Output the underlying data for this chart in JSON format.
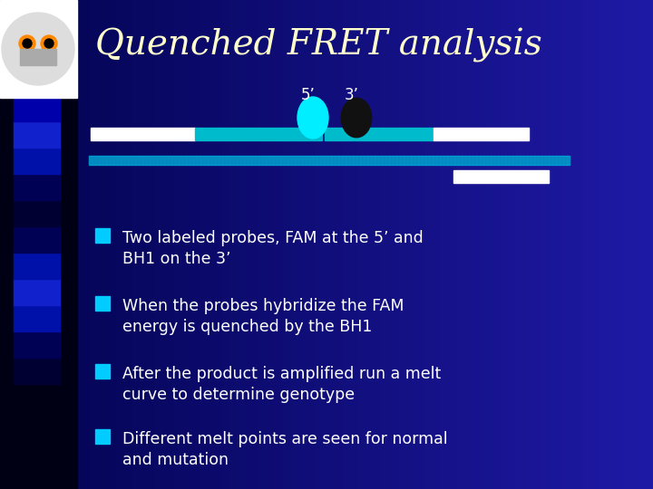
{
  "title": "Quenched FRET analysis",
  "title_color": "#FFFFCC",
  "title_fontsize": 28,
  "bg_dark": "#000030",
  "bg_mid": "#0000AA",
  "bg_right": "#1144CC",
  "left_strip_color": "#000010",
  "bullet_color": "#00CCFF",
  "text_color": "#FFFFFF",
  "bullet_items": [
    "Two labeled probes, FAM at the 5’ and\nBH1 on the 3’",
    "When the probes hybridize the FAM\nenergy is quenched by the BH1",
    "After the product is amplified run a melt\ncurve to determine genotype",
    "Different melt points are seen for normal\nand mutation"
  ],
  "label_5prime": "5’",
  "label_3prime": "3’",
  "fam_color": "#00EEFF",
  "bh1_outline_color": "#CC0000",
  "bh1_fill_color": "#111111",
  "probe_bar_color": "#00BBCC",
  "template_bar_color": "#00AADD",
  "white_bar_color": "#FFFFFF",
  "sq_colors": [
    "#0000AA",
    "#1122BB",
    "#2233CC",
    "#3344DD",
    "#0011AA",
    "#1122BB",
    "#0000AA",
    "#1133CC",
    "#0022BB",
    "#0011AA",
    "#1122BB",
    "#2233CC",
    "#1133BB",
    "#0022AA"
  ]
}
